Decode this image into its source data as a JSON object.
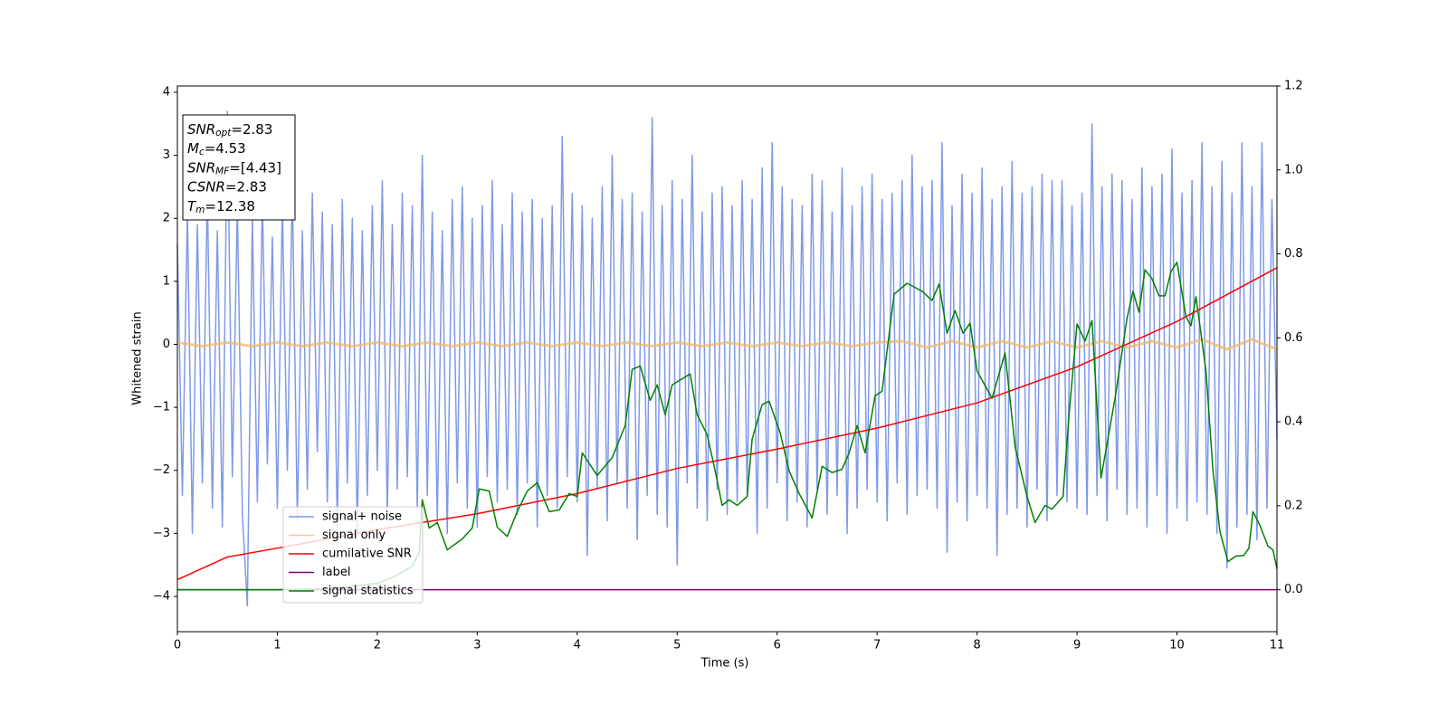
{
  "chart_data": {
    "type": "line",
    "x_label": "Time (s)",
    "y_label": "Whitened strain",
    "xlim": [
      0,
      11
    ],
    "xticks": [
      0,
      1,
      2,
      3,
      4,
      5,
      6,
      7,
      8,
      9,
      10,
      11
    ],
    "ylim": [
      -4.56,
      4.1
    ],
    "yticks": [
      {
        "value": -4,
        "label": "−4"
      },
      {
        "value": -3,
        "label": "−3"
      },
      {
        "value": -2,
        "label": "−2"
      },
      {
        "value": -1,
        "label": "−1"
      },
      0,
      1,
      2,
      3,
      4
    ],
    "y2lim": [
      -0.1,
      1.2
    ],
    "y2ticks": [
      {
        "value": 0,
        "label": "0.0"
      },
      0.2,
      0.4,
      0.6,
      0.8,
      {
        "value": 1,
        "label": "1.0"
      },
      1.2
    ],
    "annotation": [
      {
        "symbol": "SNR",
        "subscript": "opt",
        "text": "=2.83"
      },
      {
        "symbol": "M",
        "subscript": "c",
        "text": "=4.53"
      },
      {
        "symbol": "SNR",
        "subscript": "MF",
        "text": "=[4.43]"
      },
      {
        "symbol": "CSNR",
        "text": "=2.83"
      },
      {
        "symbol": "T",
        "subscript": "m",
        "text": "=12.38"
      }
    ],
    "legend": "lower left",
    "series": [
      {
        "name": "signal+ noise",
        "color": "#7893e8",
        "x": [
          0,
          0.05,
          0.1,
          0.15,
          0.2,
          0.25,
          0.3,
          0.35,
          0.4,
          0.45,
          0.5,
          0.55,
          0.6,
          0.65,
          0.7,
          0.75,
          0.8,
          0.85,
          0.9,
          0.95,
          1,
          1.05,
          1.1,
          1.15,
          1.2,
          1.25,
          1.3,
          1.35,
          1.4,
          1.45,
          1.5,
          1.55,
          1.6,
          1.65,
          1.7,
          1.75,
          1.8,
          1.85,
          1.9,
          1.95,
          2,
          2.05,
          2.1,
          2.15,
          2.2,
          2.25,
          2.3,
          2.35,
          2.4,
          2.45,
          2.5,
          2.55,
          2.6,
          2.65,
          2.7,
          2.75,
          2.8,
          2.85,
          2.9,
          2.95,
          3,
          3.05,
          3.1,
          3.15,
          3.2,
          3.25,
          3.3,
          3.35,
          3.4,
          3.45,
          3.5,
          3.55,
          3.6,
          3.65,
          3.7,
          3.75,
          3.8,
          3.85,
          3.9,
          3.95,
          4,
          4.05,
          4.1,
          4.15,
          4.2,
          4.25,
          4.3,
          4.35,
          4.4,
          4.45,
          4.5,
          4.55,
          4.6,
          4.65,
          4.7,
          4.75,
          4.8,
          4.85,
          4.9,
          4.95,
          5,
          5.05,
          5.1,
          5.15,
          5.2,
          5.25,
          5.3,
          5.35,
          5.4,
          5.45,
          5.5,
          5.55,
          5.6,
          5.65,
          5.7,
          5.75,
          5.8,
          5.85,
          5.9,
          5.95,
          6,
          6.05,
          6.1,
          6.15,
          6.2,
          6.25,
          6.3,
          6.35,
          6.4,
          6.45,
          6.5,
          6.55,
          6.6,
          6.65,
          6.7,
          6.75,
          6.8,
          6.85,
          6.9,
          6.95,
          7,
          7.05,
          7.1,
          7.15,
          7.2,
          7.25,
          7.3,
          7.35,
          7.4,
          7.45,
          7.5,
          7.55,
          7.6,
          7.65,
          7.7,
          7.75,
          7.8,
          7.85,
          7.9,
          7.95,
          8,
          8.05,
          8.1,
          8.15,
          8.2,
          8.25,
          8.3,
          8.35,
          8.4,
          8.45,
          8.5,
          8.55,
          8.6,
          8.65,
          8.7,
          8.75,
          8.8,
          8.85,
          8.9,
          8.95,
          9,
          9.05,
          9.1,
          9.15,
          9.2,
          9.25,
          9.3,
          9.35,
          9.4,
          9.45,
          9.5,
          9.55,
          9.6,
          9.65,
          9.7,
          9.75,
          9.8,
          9.85,
          9.9,
          9.95,
          10,
          10.05,
          10.1,
          10.15,
          10.2,
          10.25,
          10.3,
          10.35,
          10.4,
          10.45,
          10.5,
          10.55,
          10.6,
          10.65,
          10.7,
          10.75,
          10.8,
          10.85,
          10.9,
          10.95,
          11
        ],
        "values": [
          1.6,
          -2.4,
          2.1,
          -3.0,
          1.9,
          -2.2,
          2.4,
          -2.6,
          1.8,
          -2.9,
          3.7,
          -2.1,
          2.2,
          -2.7,
          -4.15,
          2.0,
          -2.5,
          2.3,
          -1.9,
          1.7,
          -2.6,
          2.2,
          -2.0,
          2.5,
          -2.8,
          1.8,
          -2.3,
          2.4,
          -1.7,
          2.1,
          -2.5,
          1.9,
          -2.9,
          2.3,
          -2.2,
          2.0,
          -3.0,
          1.8,
          -2.4,
          2.2,
          -2.0,
          2.6,
          -2.7,
          1.9,
          -2.3,
          2.4,
          -2.1,
          2.2,
          -2.6,
          3.0,
          -2.4,
          2.1,
          -2.8,
          1.8,
          -3.0,
          2.3,
          -2.2,
          2.5,
          -2.6,
          2.0,
          -2.9,
          2.2,
          -2.1,
          2.6,
          -2.5,
          1.9,
          -2.3,
          2.4,
          -2.7,
          2.1,
          -2.2,
          2.3,
          -2.9,
          2.0,
          -2.4,
          2.2,
          -2.6,
          3.3,
          -2.1,
          2.4,
          -2.5,
          2.2,
          -3.35,
          2.0,
          -2.3,
          2.5,
          -2.8,
          3.0,
          -2.2,
          2.3,
          -2.6,
          2.4,
          -3.1,
          2.1,
          -2.4,
          3.6,
          -2.7,
          2.2,
          -2.9,
          2.6,
          -3.5,
          2.3,
          -2.2,
          3.0,
          -2.6,
          2.1,
          -2.8,
          2.4,
          -2.3,
          2.5,
          -2.7,
          2.2,
          -2.5,
          2.6,
          -2.4,
          2.3,
          -3.0,
          2.8,
          -2.6,
          3.2,
          -2.2,
          2.5,
          -2.8,
          2.3,
          -2.5,
          2.2,
          -2.9,
          2.7,
          -2.3,
          2.6,
          -2.7,
          2.1,
          -2.4,
          2.8,
          -3.0,
          2.2,
          -2.6,
          2.5,
          -2.3,
          2.7,
          -2.5,
          2.3,
          -2.8,
          2.4,
          -2.2,
          2.6,
          -2.7,
          3.0,
          -2.4,
          2.5,
          -2.3,
          2.6,
          -2.6,
          3.2,
          -3.3,
          2.2,
          -2.5,
          2.7,
          -2.8,
          2.4,
          -2.4,
          2.8,
          -2.6,
          2.3,
          -3.35,
          2.5,
          -2.7,
          2.9,
          -2.6,
          2.4,
          -2.9,
          2.5,
          -2.3,
          2.7,
          -2.8,
          2.6,
          -2.4,
          2.6,
          -2.5,
          2.2,
          -2.6,
          2.4,
          -2.7,
          3.5,
          -2.4,
          2.5,
          -2.8,
          2.7,
          -2.3,
          2.6,
          -2.7,
          2.3,
          -2.6,
          2.8,
          -2.9,
          2.5,
          -2.4,
          2.7,
          -3.0,
          3.1,
          -2.6,
          2.4,
          -2.8,
          2.6,
          -2.5,
          3.2,
          -2.7,
          2.5,
          -3.0,
          2.9,
          -3.55,
          2.4,
          -2.9,
          3.2,
          -2.7,
          2.5,
          -3.1,
          3.2,
          -2.6,
          2.3,
          -1.5
        ]
      },
      {
        "name": "signal only",
        "color": "#f0b868",
        "x": [
          0,
          0.25,
          0.5,
          0.75,
          1,
          1.25,
          1.5,
          1.75,
          2,
          2.25,
          2.5,
          2.75,
          3,
          3.25,
          3.5,
          3.75,
          4,
          4.25,
          4.5,
          4.75,
          5,
          5.25,
          5.5,
          5.75,
          6,
          6.25,
          6.5,
          6.75,
          7,
          7.25,
          7.5,
          7.75,
          8,
          8.25,
          8.5,
          8.75,
          9,
          9.25,
          9.5,
          9.75,
          10,
          10.25,
          10.5,
          10.75,
          11
        ],
        "values": [
          0.03,
          -0.03,
          0.03,
          -0.03,
          0.03,
          -0.03,
          0.03,
          -0.03,
          0.03,
          -0.03,
          0.03,
          -0.03,
          0.03,
          -0.03,
          0.03,
          -0.03,
          0.03,
          -0.03,
          0.03,
          -0.03,
          0.03,
          -0.03,
          0.03,
          -0.03,
          0.03,
          -0.03,
          0.03,
          -0.03,
          0.03,
          0.05,
          -0.05,
          0.05,
          -0.05,
          0.05,
          -0.05,
          0.05,
          -0.05,
          0.05,
          -0.05,
          0.05,
          -0.05,
          0.08,
          -0.08,
          0.08,
          -0.08
        ]
      },
      {
        "name": "cumilative SNR",
        "color": "#ff0000",
        "axis": "y2",
        "x": [
          0,
          0.5,
          1,
          2,
          3,
          4,
          5,
          6,
          7,
          8,
          9,
          10,
          11
        ],
        "values": [
          0.024,
          0.078,
          0.099,
          0.143,
          0.181,
          0.229,
          0.289,
          0.335,
          0.385,
          0.445,
          0.531,
          0.639,
          0.767
        ]
      },
      {
        "name": "label",
        "color": "#800080",
        "axis": "y2",
        "x": [
          0,
          11
        ],
        "values": [
          0,
          0
        ]
      },
      {
        "name": "signal statistics",
        "color": "#008000",
        "axis": "y2",
        "x": [
          0,
          1,
          1.5,
          2,
          2.2,
          2.35,
          2.42,
          2.45,
          2.52,
          2.6,
          2.7,
          2.85,
          2.95,
          3.02,
          3.12,
          3.2,
          3.3,
          3.4,
          3.5,
          3.6,
          3.72,
          3.82,
          3.92,
          4,
          4.05,
          4.2,
          4.35,
          4.48,
          4.55,
          4.63,
          4.73,
          4.8,
          4.88,
          4.95,
          5.13,
          5.2,
          5.3,
          5.38,
          5.45,
          5.52,
          5.6,
          5.7,
          5.75,
          5.85,
          5.92,
          6.03,
          6.12,
          6.22,
          6.35,
          6.45,
          6.55,
          6.65,
          6.72,
          6.8,
          6.88,
          6.98,
          7.05,
          7.17,
          7.3,
          7.45,
          7.55,
          7.62,
          7.7,
          7.78,
          7.86,
          7.93,
          8,
          8.15,
          8.28,
          8.38,
          8.5,
          8.58,
          8.68,
          8.75,
          8.86,
          8.92,
          9,
          9.08,
          9.15,
          9.24,
          9.38,
          9.5,
          9.56,
          9.62,
          9.68,
          9.75,
          9.82,
          9.88,
          9.94,
          10,
          10.09,
          10.14,
          10.19,
          10.29,
          10.36,
          10.43,
          10.51,
          10.59,
          10.67,
          10.72,
          10.76,
          10.83,
          10.91,
          10.96,
          11
        ],
        "values": [
          0,
          0,
          0.002,
          0.015,
          0.035,
          0.056,
          0.089,
          0.214,
          0.147,
          0.16,
          0.095,
          0.121,
          0.147,
          0.24,
          0.235,
          0.149,
          0.127,
          0.186,
          0.235,
          0.255,
          0.186,
          0.19,
          0.229,
          0.222,
          0.326,
          0.272,
          0.315,
          0.391,
          0.525,
          0.533,
          0.451,
          0.488,
          0.417,
          0.488,
          0.514,
          0.417,
          0.369,
          0.283,
          0.201,
          0.214,
          0.201,
          0.222,
          0.359,
          0.441,
          0.449,
          0.374,
          0.283,
          0.229,
          0.171,
          0.294,
          0.279,
          0.287,
          0.326,
          0.391,
          0.326,
          0.462,
          0.473,
          0.704,
          0.73,
          0.711,
          0.689,
          0.728,
          0.611,
          0.665,
          0.611,
          0.635,
          0.521,
          0.456,
          0.564,
          0.341,
          0.222,
          0.16,
          0.201,
          0.192,
          0.222,
          0.417,
          0.633,
          0.592,
          0.641,
          0.266,
          0.456,
          0.646,
          0.711,
          0.661,
          0.762,
          0.741,
          0.7,
          0.7,
          0.758,
          0.78,
          0.65,
          0.629,
          0.698,
          0.521,
          0.283,
          0.138,
          0.067,
          0.08,
          0.082,
          0.099,
          0.186,
          0.153,
          0.104,
          0.095,
          0.05
        ]
      }
    ]
  }
}
